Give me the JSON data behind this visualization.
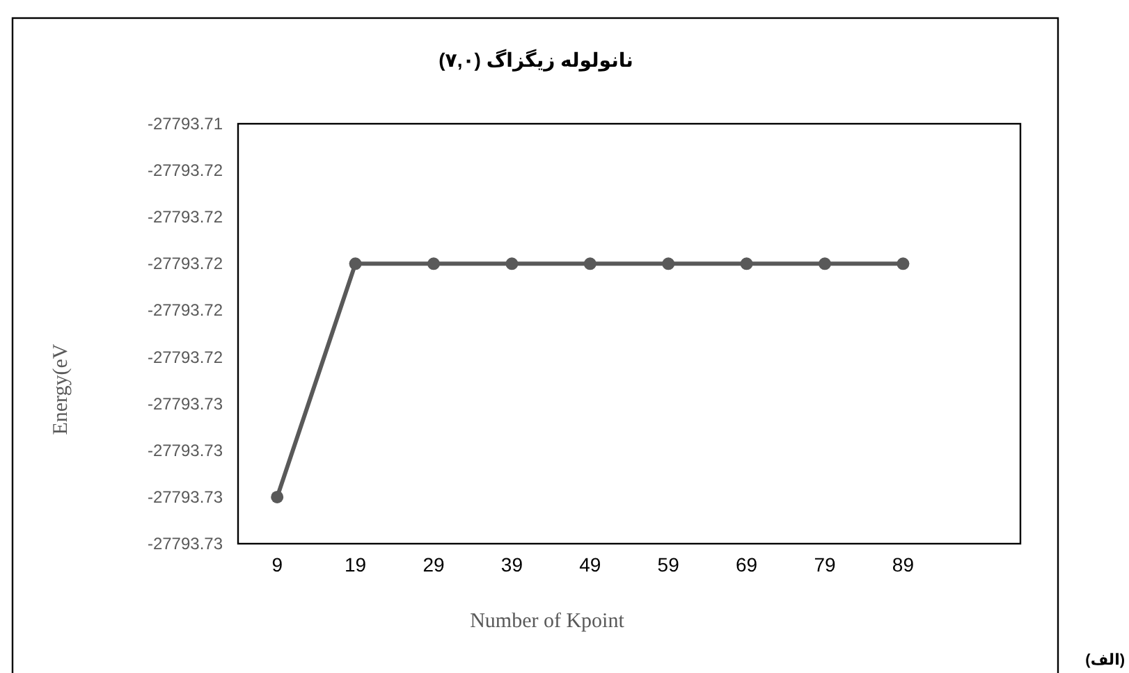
{
  "chart_data": {
    "type": "line",
    "title": "نانولوله زیگزاگ (۷,۰)",
    "xlabel": "Number of Kpoint",
    "ylabel": "Energy(eV",
    "annotations": [
      "(الف)"
    ],
    "categories": [
      "9",
      "19",
      "29",
      "39",
      "49",
      "59",
      "69",
      "79",
      "89",
      null
    ],
    "series": [
      {
        "color": "#595959",
        "values": [
          -27793.73,
          -27793.72,
          -27793.72,
          -27793.72,
          -27793.72,
          -27793.72,
          -27793.72,
          -27793.72,
          -27793.72,
          null
        ]
      }
    ],
    "ylim": [
      -27793.732,
      -27793.714
    ],
    "yticks": [
      {
        "value": -27793.714,
        "label": "-27793.71"
      },
      {
        "value": -27793.716,
        "label": "-27793.72"
      },
      {
        "value": -27793.718,
        "label": "-27793.72"
      },
      {
        "value": -27793.72,
        "label": "-27793.72"
      },
      {
        "value": -27793.722,
        "label": "-27793.72"
      },
      {
        "value": -27793.724,
        "label": "-27793.72"
      },
      {
        "value": -27793.726,
        "label": "-27793.73"
      },
      {
        "value": -27793.728,
        "label": "-27793.73"
      },
      {
        "value": -27793.73,
        "label": "-27793.73"
      },
      {
        "value": -27793.732,
        "label": "-27793.73"
      }
    ],
    "marker": "circle",
    "line_style": "solid",
    "grid": false
  }
}
